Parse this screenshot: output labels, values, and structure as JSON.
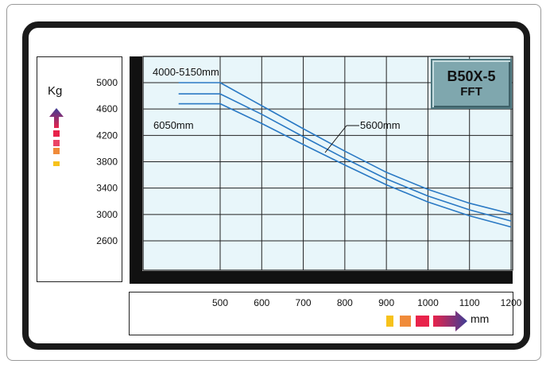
{
  "chart_data": {
    "type": "line",
    "model": [
      "B50X-5",
      "FFT"
    ],
    "y_unit": "Kg",
    "x_unit": "mm",
    "y_ticks": [
      "5000",
      "4600",
      "4200",
      "3800",
      "3400",
      "3000",
      "2600"
    ],
    "x_ticks": [
      "500",
      "600",
      "700",
      "800",
      "900",
      "1000",
      "1100",
      "1200"
    ],
    "grid": true,
    "series": [
      {
        "name": "4000-5150mm",
        "x": [
          400,
          500,
          600,
          700,
          800,
          900,
          1000,
          1100,
          1200
        ],
        "y": [
          5000,
          5000,
          4650,
          4300,
          3960,
          3640,
          3380,
          3170,
          3010
        ]
      },
      {
        "name": "5600mm",
        "x": [
          400,
          500,
          600,
          700,
          800,
          900,
          1000,
          1100,
          1200
        ],
        "y": [
          4830,
          4830,
          4520,
          4180,
          3850,
          3540,
          3280,
          3070,
          2900
        ]
      },
      {
        "name": "6050mm",
        "x": [
          400,
          500,
          600,
          700,
          800,
          900,
          1000,
          1100,
          1200
        ],
        "y": [
          4680,
          4680,
          4380,
          4060,
          3750,
          3450,
          3190,
          2980,
          2810
        ]
      }
    ],
    "line_color": "#2a79c4",
    "legend_colors": [
      "#f7c21b",
      "#f08b3a",
      "#e8234b",
      "#8b3c8f",
      "#4b3a93"
    ]
  }
}
